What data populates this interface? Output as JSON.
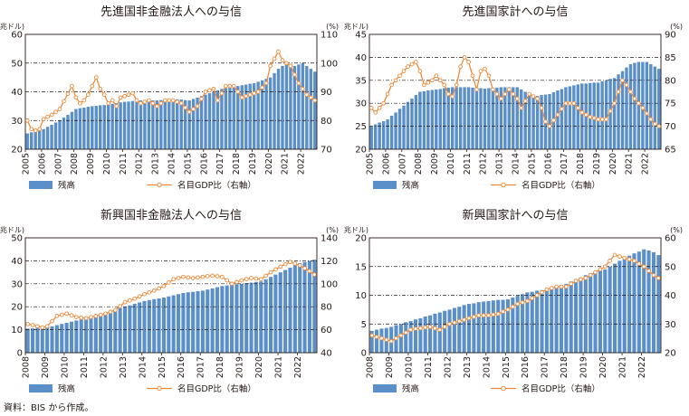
{
  "source": "資料：BIS から作成。",
  "colors": {
    "bar": "#5b8fc9",
    "line": "#ed8b3c",
    "marker_fill": "#ffffff",
    "text": "#231815"
  },
  "chart_data": [
    {
      "type": "bar",
      "title": "先進国非金融法人への与信",
      "ylabel": "(兆ドル)",
      "y2label": "(%)",
      "ylim": [
        20,
        60
      ],
      "yticks": [
        20,
        30,
        40,
        50,
        60
      ],
      "y2lim": [
        70,
        110
      ],
      "y2ticks": [
        70,
        80,
        90,
        100,
        110
      ],
      "start": [
        2005,
        1
      ],
      "n": 72,
      "xticks": [
        "2005",
        "2006",
        "2007",
        "2008",
        "2009",
        "2010",
        "2011",
        "2012",
        "2013",
        "2014",
        "2015",
        "2016",
        "2017",
        "2018",
        "2019",
        "2020",
        "2021",
        "2022"
      ],
      "legend": {
        "bar": "残高",
        "line": "名目GDP比（右軸）"
      },
      "anchors_bar": [
        [
          0,
          25.5
        ],
        [
          4,
          27
        ],
        [
          8,
          30
        ],
        [
          12,
          34
        ],
        [
          16,
          35
        ],
        [
          20,
          35.5
        ],
        [
          24,
          36.5
        ],
        [
          28,
          37
        ],
        [
          32,
          37
        ],
        [
          36,
          37.5
        ],
        [
          40,
          37
        ],
        [
          44,
          39
        ],
        [
          48,
          41
        ],
        [
          52,
          42
        ],
        [
          56,
          43
        ],
        [
          60,
          45
        ],
        [
          62,
          48
        ],
        [
          64,
          50
        ],
        [
          66,
          49
        ],
        [
          68,
          50
        ],
        [
          70,
          48
        ],
        [
          71,
          47
        ]
      ],
      "anchors_line": [
        [
          0,
          80
        ],
        [
          1,
          77
        ],
        [
          2,
          76.5
        ],
        [
          3,
          77
        ],
        [
          4,
          80.5
        ],
        [
          6,
          82
        ],
        [
          8,
          84
        ],
        [
          11,
          92
        ],
        [
          12,
          88
        ],
        [
          13,
          86
        ],
        [
          14,
          87
        ],
        [
          15,
          89
        ],
        [
          17,
          95
        ],
        [
          18,
          91
        ],
        [
          19,
          89
        ],
        [
          20,
          86
        ],
        [
          21,
          87
        ],
        [
          22,
          85
        ],
        [
          23,
          88
        ],
        [
          25,
          89
        ],
        [
          26,
          89.5
        ],
        [
          27,
          87
        ],
        [
          28,
          86
        ],
        [
          30,
          87
        ],
        [
          32,
          85
        ],
        [
          34,
          87
        ],
        [
          36,
          87
        ],
        [
          38,
          86
        ],
        [
          40,
          83
        ],
        [
          42,
          85
        ],
        [
          44,
          90
        ],
        [
          46,
          91
        ],
        [
          47,
          87
        ],
        [
          49,
          92
        ],
        [
          51,
          92
        ],
        [
          53,
          88
        ],
        [
          55,
          89
        ],
        [
          57,
          90
        ],
        [
          59,
          93
        ],
        [
          60,
          99
        ],
        [
          62,
          104
        ],
        [
          63,
          101
        ],
        [
          65,
          99
        ],
        [
          67,
          93
        ],
        [
          69,
          89
        ],
        [
          70,
          88
        ],
        [
          71,
          87
        ]
      ]
    },
    {
      "type": "bar",
      "title": "先進国家計への与信",
      "ylabel": "(兆ドル)",
      "y2label": "(%)",
      "ylim": [
        20,
        45
      ],
      "yticks": [
        20,
        25,
        30,
        35,
        40,
        45
      ],
      "y2lim": [
        65,
        90
      ],
      "y2ticks": [
        65,
        70,
        75,
        80,
        85,
        90
      ],
      "start": [
        2005,
        1
      ],
      "n": 72,
      "xticks": [
        "2005",
        "2006",
        "2007",
        "2008",
        "2009",
        "2010",
        "2011",
        "2012",
        "2013",
        "2014",
        "2015",
        "2016",
        "2017",
        "2018",
        "2019",
        "2020",
        "2021",
        "2022"
      ],
      "legend": {
        "bar": "残高",
        "line": "名目GDP比（右軸）"
      },
      "anchors_bar": [
        [
          0,
          25
        ],
        [
          4,
          26.5
        ],
        [
          8,
          29.5
        ],
        [
          12,
          32.5
        ],
        [
          16,
          33
        ],
        [
          20,
          33.5
        ],
        [
          24,
          33.5
        ],
        [
          28,
          33.2
        ],
        [
          32,
          33.5
        ],
        [
          36,
          33.5
        ],
        [
          40,
          31.5
        ],
        [
          44,
          32
        ],
        [
          48,
          33.5
        ],
        [
          52,
          34.3
        ],
        [
          56,
          34.5
        ],
        [
          60,
          35.5
        ],
        [
          62,
          37
        ],
        [
          64,
          38.5
        ],
        [
          66,
          39
        ],
        [
          68,
          39
        ],
        [
          70,
          38
        ],
        [
          71,
          37.5
        ]
      ],
      "anchors_line": [
        [
          0,
          74
        ],
        [
          1,
          73
        ],
        [
          2,
          74
        ],
        [
          3,
          75
        ],
        [
          4,
          77
        ],
        [
          5,
          79
        ],
        [
          6,
          80
        ],
        [
          8,
          82
        ],
        [
          9,
          83
        ],
        [
          11,
          84
        ],
        [
          12,
          82
        ],
        [
          13,
          79
        ],
        [
          15,
          80
        ],
        [
          16,
          81
        ],
        [
          18,
          79
        ],
        [
          19,
          77
        ],
        [
          20,
          76.5
        ],
        [
          21,
          79
        ],
        [
          22,
          83
        ],
        [
          23,
          85
        ],
        [
          24,
          84
        ],
        [
          25,
          81
        ],
        [
          26,
          78
        ],
        [
          27,
          82
        ],
        [
          28,
          82.5
        ],
        [
          29,
          81
        ],
        [
          30,
          78
        ],
        [
          32,
          76
        ],
        [
          34,
          78
        ],
        [
          36,
          76
        ],
        [
          37,
          74
        ],
        [
          39,
          77
        ],
        [
          41,
          76
        ],
        [
          42,
          74
        ],
        [
          43,
          71
        ],
        [
          44,
          70
        ],
        [
          46,
          72.5
        ],
        [
          48,
          75
        ],
        [
          50,
          75
        ],
        [
          52,
          73
        ],
        [
          54,
          72
        ],
        [
          56,
          71.5
        ],
        [
          58,
          71.5
        ],
        [
          60,
          75
        ],
        [
          62,
          80
        ],
        [
          63,
          79
        ],
        [
          65,
          76
        ],
        [
          67,
          74
        ],
        [
          69,
          71.5
        ],
        [
          70,
          70.5
        ],
        [
          71,
          70
        ]
      ]
    },
    {
      "type": "bar",
      "title": "新興国非金融法人への与信",
      "ylabel": "(兆ドル)",
      "y2label": "(%)",
      "ylim": [
        0,
        50
      ],
      "yticks": [
        0,
        10,
        20,
        30,
        40,
        50
      ],
      "y2lim": [
        40,
        140
      ],
      "y2ticks": [
        40,
        60,
        80,
        100,
        120,
        140
      ],
      "start": [
        2008,
        1
      ],
      "n": 60,
      "xticks": [
        "2008",
        "2009",
        "2010",
        "2011",
        "2012",
        "2013",
        "2014",
        "2015",
        "2016",
        "2017",
        "2018",
        "2019",
        "2020",
        "2021",
        "2022"
      ],
      "legend": {
        "bar": "残高",
        "line": "名目GDP比（右軸）"
      },
      "anchors_bar": [
        [
          0,
          10.5
        ],
        [
          4,
          11
        ],
        [
          8,
          13
        ],
        [
          12,
          15
        ],
        [
          16,
          17.5
        ],
        [
          20,
          20
        ],
        [
          24,
          22.5
        ],
        [
          28,
          24
        ],
        [
          32,
          26
        ],
        [
          36,
          27
        ],
        [
          40,
          29
        ],
        [
          44,
          30
        ],
        [
          48,
          31
        ],
        [
          52,
          35
        ],
        [
          56,
          39
        ],
        [
          58,
          40
        ],
        [
          59,
          40.5
        ]
      ],
      "anchors_line": [
        [
          0,
          65
        ],
        [
          2,
          63
        ],
        [
          3,
          62
        ],
        [
          4,
          63
        ],
        [
          6,
          72
        ],
        [
          8,
          74
        ],
        [
          10,
          71
        ],
        [
          12,
          70
        ],
        [
          14,
          72
        ],
        [
          16,
          74
        ],
        [
          18,
          77
        ],
        [
          20,
          84
        ],
        [
          22,
          87
        ],
        [
          24,
          91
        ],
        [
          26,
          94
        ],
        [
          28,
          98
        ],
        [
          30,
          104
        ],
        [
          32,
          106
        ],
        [
          34,
          105
        ],
        [
          36,
          106
        ],
        [
          38,
          107
        ],
        [
          40,
          106
        ],
        [
          42,
          100
        ],
        [
          44,
          103
        ],
        [
          46,
          105
        ],
        [
          48,
          104
        ],
        [
          50,
          110
        ],
        [
          52,
          115
        ],
        [
          54,
          119
        ],
        [
          56,
          116
        ],
        [
          58,
          111
        ],
        [
          59,
          108
        ]
      ]
    },
    {
      "type": "bar",
      "title": "新興国家計への与信",
      "ylabel": "(兆ドル)",
      "y2label": "(%)",
      "ylim": [
        0,
        20
      ],
      "yticks": [
        0,
        5,
        10,
        15,
        20
      ],
      "y2lim": [
        20,
        60
      ],
      "y2ticks": [
        20,
        30,
        40,
        50,
        60
      ],
      "start": [
        2008,
        1
      ],
      "n": 60,
      "xticks": [
        "2008",
        "2009",
        "2010",
        "2011",
        "2012",
        "2013",
        "2014",
        "2015",
        "2016",
        "2017",
        "2018",
        "2019",
        "2020",
        "2021",
        "2022"
      ],
      "legend": {
        "bar": "残高",
        "line": "名目GDP比（右軸）"
      },
      "anchors_bar": [
        [
          0,
          3.8
        ],
        [
          4,
          4.5
        ],
        [
          8,
          5.5
        ],
        [
          12,
          6.5
        ],
        [
          16,
          7.5
        ],
        [
          20,
          8.5
        ],
        [
          24,
          9
        ],
        [
          28,
          9.3
        ],
        [
          32,
          10.5
        ],
        [
          36,
          11
        ],
        [
          40,
          12
        ],
        [
          44,
          13.5
        ],
        [
          48,
          14.5
        ],
        [
          52,
          16.5
        ],
        [
          56,
          18
        ],
        [
          58,
          17.5
        ],
        [
          59,
          17
        ]
      ],
      "anchors_line": [
        [
          0,
          26
        ],
        [
          2,
          25
        ],
        [
          4,
          24
        ],
        [
          6,
          26
        ],
        [
          8,
          28
        ],
        [
          10,
          28.5
        ],
        [
          12,
          29
        ],
        [
          14,
          28
        ],
        [
          16,
          30
        ],
        [
          18,
          31
        ],
        [
          20,
          32
        ],
        [
          22,
          33
        ],
        [
          24,
          33
        ],
        [
          26,
          33.5
        ],
        [
          28,
          35
        ],
        [
          30,
          37
        ],
        [
          32,
          38
        ],
        [
          34,
          40
        ],
        [
          36,
          42
        ],
        [
          38,
          43
        ],
        [
          40,
          43
        ],
        [
          42,
          45
        ],
        [
          44,
          46
        ],
        [
          46,
          48
        ],
        [
          48,
          50
        ],
        [
          50,
          54
        ],
        [
          52,
          53
        ],
        [
          54,
          52
        ],
        [
          56,
          50
        ],
        [
          58,
          47
        ],
        [
          59,
          46
        ]
      ]
    }
  ]
}
